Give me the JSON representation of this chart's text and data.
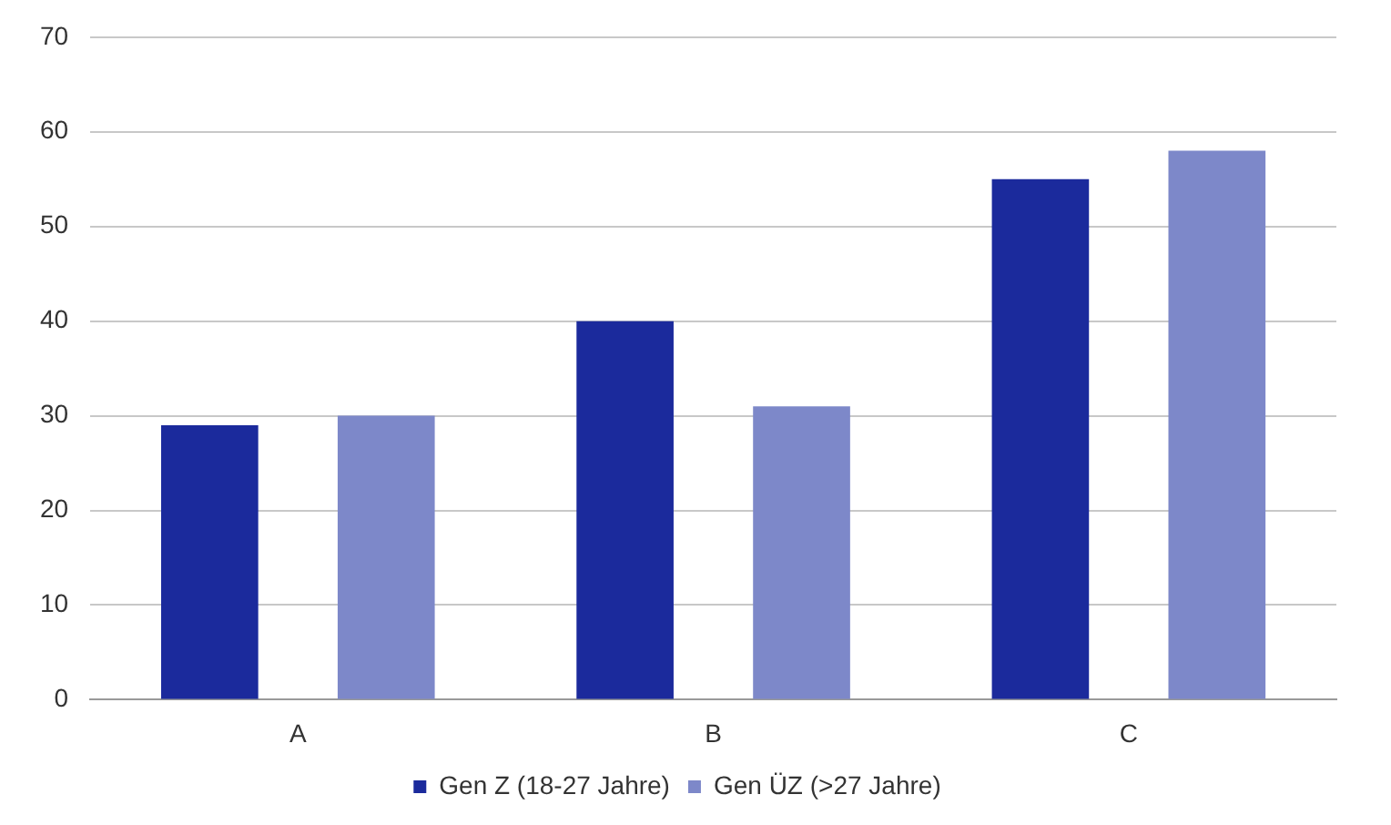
{
  "chart_data": {
    "type": "bar",
    "categories": [
      "A",
      "B",
      "C"
    ],
    "series": [
      {
        "name": "Gen Z (18-27 Jahre)",
        "color": "#1b2a9c",
        "values": [
          29,
          40,
          55
        ]
      },
      {
        "name": "Gen ÜZ (>27 Jahre)",
        "color": "#7d88c9",
        "values": [
          30,
          31,
          58
        ]
      }
    ],
    "ylim": [
      0,
      70
    ],
    "yticks": [
      0,
      10,
      20,
      30,
      40,
      50,
      60,
      70
    ],
    "grid": "y",
    "legend": "bottom"
  }
}
